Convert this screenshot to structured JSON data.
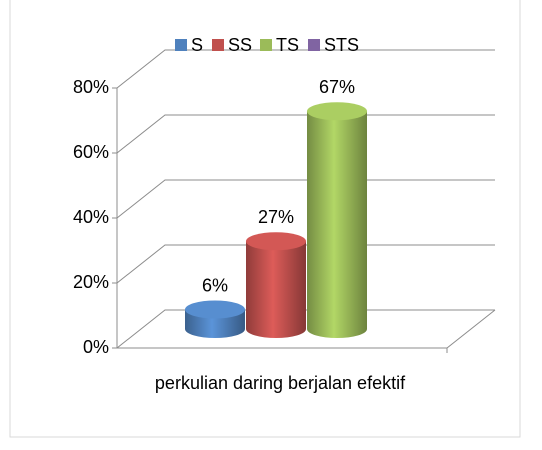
{
  "chart_data": {
    "type": "bar3d",
    "categories": [
      "perkulian daring berjalan efektif"
    ],
    "series": [
      {
        "name": "S",
        "color": "#4f81bd",
        "values": [
          6
        ],
        "value_labels": [
          "6%"
        ]
      },
      {
        "name": "SS",
        "color": "#c0504d",
        "values": [
          27
        ],
        "value_labels": [
          "27%"
        ]
      },
      {
        "name": "TS",
        "color": "#9bbb59",
        "values": [
          67
        ],
        "value_labels": [
          "67%"
        ]
      },
      {
        "name": "STS",
        "color": "#8064a2",
        "values": [
          null
        ],
        "value_labels": [
          null
        ]
      }
    ],
    "ylim": [
      0,
      80
    ],
    "yticks": [
      {
        "value": 0,
        "label": "0%"
      },
      {
        "value": 20,
        "label": "20%"
      },
      {
        "value": 40,
        "label": "40%"
      },
      {
        "value": 60,
        "label": "60%"
      },
      {
        "value": 80,
        "label": "80%"
      }
    ],
    "grid": true,
    "legend": "top"
  }
}
